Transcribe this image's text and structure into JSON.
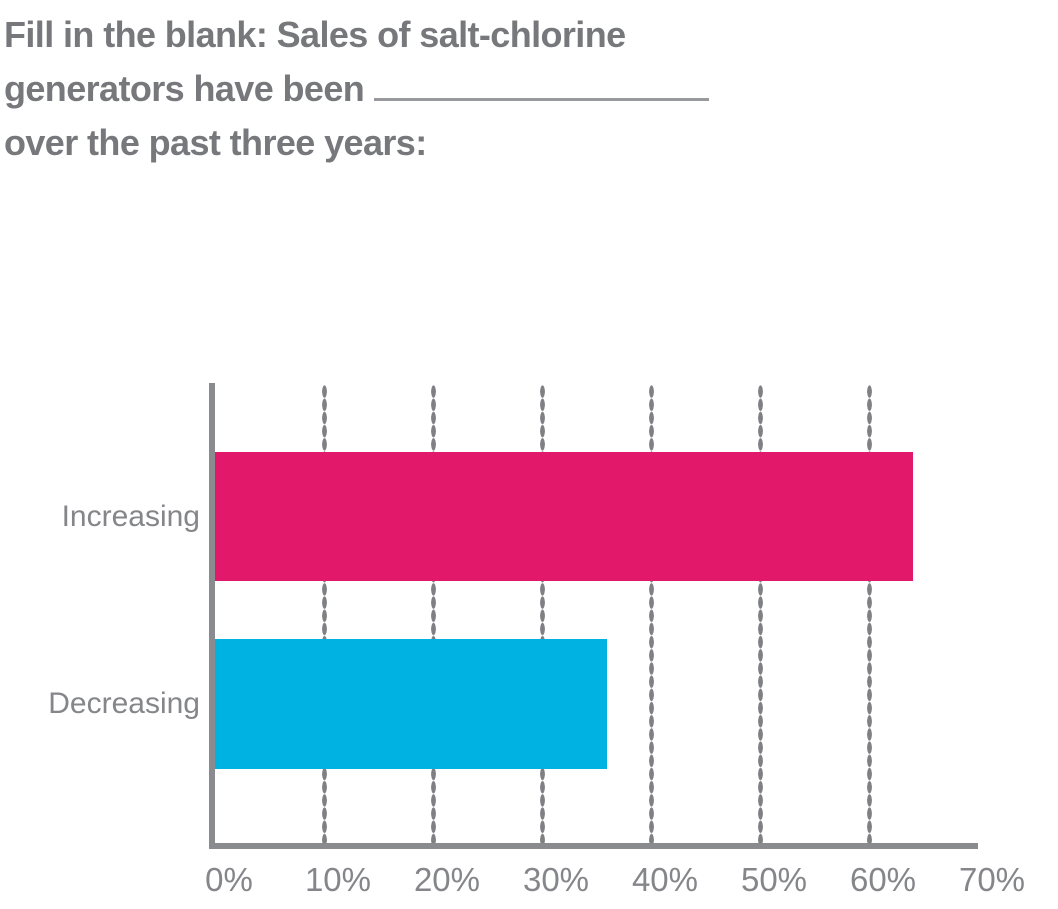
{
  "title": {
    "line1": "Fill in the blank: Sales of salt-chlorine",
    "line2_prefix": "generators have been",
    "line3": "over the past three years:"
  },
  "chart_data": {
    "type": "bar",
    "orientation": "horizontal",
    "title": "Fill in the blank: Sales of salt-chlorine generators have been ______ over the past three years:",
    "categories": [
      "Increasing",
      "Decreasing"
    ],
    "values": [
      64,
      36
    ],
    "unit": "%",
    "xlabel": "",
    "ylabel": "",
    "xlim": [
      0,
      70
    ],
    "x_ticks": [
      "0%",
      "10%",
      "20%",
      "30%",
      "40%",
      "50%",
      "60%",
      "70%"
    ],
    "gridline_values": [
      10,
      20,
      30,
      40,
      50,
      60
    ],
    "gridline_style": "dotted-vertical",
    "legend": "none",
    "colors": [
      "#e2186b",
      "#00b2e2"
    ]
  },
  "style_colors": {
    "title_text": "#77787b",
    "label_text": "#85868a",
    "axis": "#8a8b8e",
    "gridline_dots": "#7f8083",
    "blank_underline": "#98999c"
  }
}
